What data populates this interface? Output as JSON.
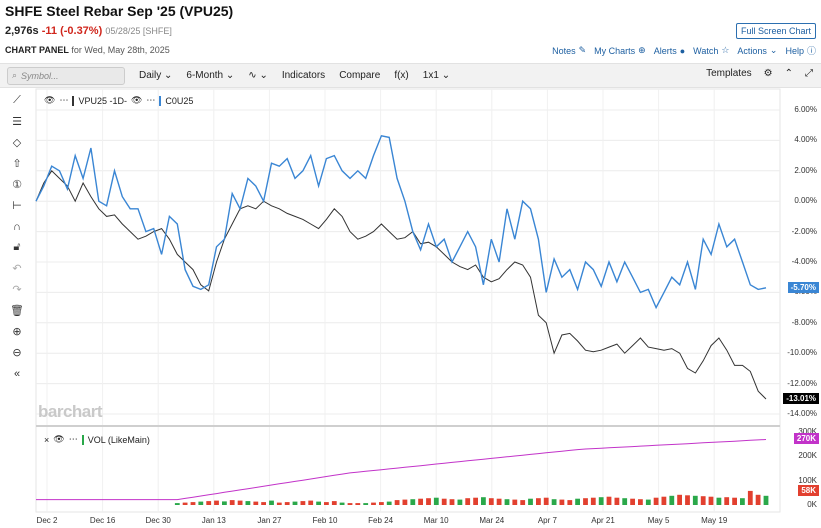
{
  "header": {
    "title": "SHFE Steel Rebar Sep '25 (VPU25)",
    "price": "2,976s",
    "change": "-11 (-0.37%)",
    "date": "05/28/25 [SHFE]",
    "panel_label": "CHART PANEL",
    "panel_date": "for Wed, May 28th, 2025",
    "fullscreen": "Full Screen Chart"
  },
  "topnav": [
    "Notes",
    "My Charts",
    "Alerts",
    "Watch",
    "Actions",
    "Help"
  ],
  "toolbar": {
    "search_placeholder": "Symbol...",
    "interval": "Daily",
    "range": "6-Month",
    "indicators": "Indicators",
    "compare": "Compare",
    "fx": "f(x)",
    "layout": "1x1",
    "templates": "Templates"
  },
  "legend": {
    "s1": "VPU25 -1D-",
    "s2": "C0U25"
  },
  "volume_legend": "VOL (LikeMain)",
  "watermark": "barchart",
  "colors": {
    "vpu": "#333333",
    "c0u": "#3a86d4",
    "vol_avg": "#c233c9",
    "up": "#2aa84a",
    "down": "#e2402f"
  },
  "chart_data": {
    "type": "line",
    "y_ticks": [
      "6.00%",
      "4.00%",
      "2.00%",
      "0.00%",
      "-2.00%",
      "-4.00%",
      "-6.00%",
      "-8.00%",
      "-10.00%",
      "-12.00%",
      "-14.00%"
    ],
    "ylim": [
      -14,
      6
    ],
    "x_ticks": [
      "Dec 2",
      "Dec 16",
      "Dec 30",
      "Jan 13",
      "Jan 27",
      "Feb 10",
      "Feb 24",
      "Mar 10",
      "Mar 24",
      "Apr 7",
      "Apr 21",
      "May 5",
      "May 19"
    ],
    "series": [
      {
        "name": "VPU25 -1D-",
        "last_label": "-13.01%",
        "values": [
          0.0,
          1.2,
          2.0,
          1.5,
          1.0,
          0.0,
          1.2,
          0.3,
          -0.5,
          -1.0,
          -0.9,
          -1.5,
          -2.0,
          -2.5,
          -2.3,
          -2.0,
          -1.8,
          -2.5,
          -3.5,
          -4.0,
          -4.5,
          -5.5,
          -5.9,
          -4.0,
          -2.5,
          -1.5,
          -0.5,
          -0.3,
          -0.5,
          0.0,
          -0.3,
          -0.5,
          -0.8,
          -1.0,
          -1.2,
          -1.5,
          -1.8,
          -1.2,
          -0.5,
          -1.0,
          -2.0,
          -2.5,
          -2.3,
          -2.0,
          -1.5,
          -2.0,
          -2.5,
          -2.4,
          -2.0,
          -2.8,
          -2.7,
          -3.0,
          -3.5,
          -4.0,
          -4.3,
          -4.5,
          -4.2,
          -5.0,
          -5.3,
          -5.1,
          -4.5,
          -4.0,
          -4.2,
          -5.0,
          -7.5,
          -8.0,
          -10.0,
          -8.8,
          -8.7,
          -9.2,
          -9.8,
          -9.9,
          -9.8,
          -9.6,
          -9.4,
          -10.0,
          -9.5,
          -9.0,
          -9.6,
          -9.7,
          -9.8,
          -9.7,
          -10.0,
          -11.0,
          -11.3,
          -10.5,
          -9.5,
          -9.0,
          -9.8,
          -10.8,
          -10.8,
          -11.2,
          -12.5,
          -13.01
        ]
      },
      {
        "name": "C0U25",
        "last_label": "-5.70%",
        "values": [
          0.0,
          1.0,
          2.3,
          2.0,
          0.8,
          3.0,
          1.5,
          3.5,
          0.0,
          -0.3,
          2.0,
          0.3,
          -0.5,
          -0.5,
          -2.0,
          -1.8,
          -3.5,
          -1.0,
          -1.5,
          -4.5,
          -5.6,
          -5.8,
          -5.5,
          -3.0,
          -2.5,
          0.5,
          -0.5,
          1.5,
          1.0,
          0.0,
          2.5,
          2.3,
          2.8,
          1.5,
          2.0,
          3.0,
          1.0,
          2.8,
          3.0,
          2.0,
          1.5,
          2.0,
          1.5,
          3.0,
          4.3,
          4.2,
          1.5,
          0.0,
          -2.0,
          -3.2,
          -1.5,
          -3.0,
          -2.5,
          -4.0,
          -3.0,
          -2.0,
          -3.0,
          -5.5,
          -2.5,
          -4.0,
          -0.5,
          -2.5,
          -0.0,
          -0.5,
          -2.5,
          -6.0,
          -3.8,
          -5.0,
          -4.5,
          -5.8,
          -4.0,
          -4.5,
          -5.6,
          -4.0,
          -5.3,
          -4.0,
          -5.0,
          -6.0,
          -5.8,
          -7.0,
          -6.0,
          -5.0,
          -5.5,
          -4.0,
          -5.8,
          -2.5,
          -3.5,
          -1.5,
          -3.0,
          -2.5,
          -4.0,
          -5.5,
          -5.8,
          -5.7
        ]
      }
    ],
    "volume": {
      "y_ticks": [
        "300K",
        "200K",
        "100K",
        "0K"
      ],
      "avg_label": "270K",
      "last_label": "58K"
    }
  }
}
